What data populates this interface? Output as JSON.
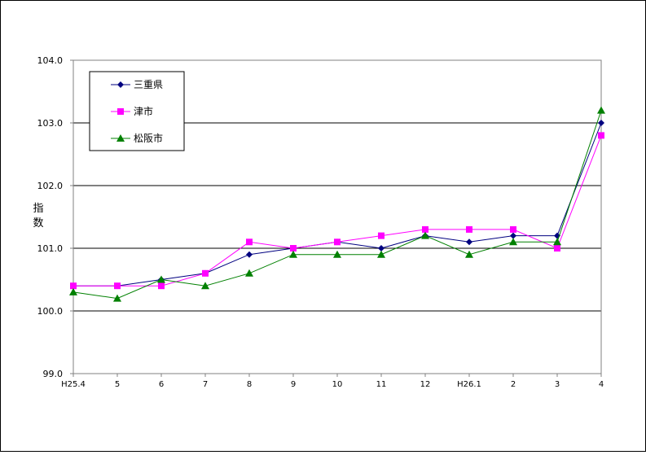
{
  "chart_data": {
    "type": "line",
    "title": "",
    "xlabel": "",
    "ylabel": "指数",
    "ylim": [
      99.0,
      104.0
    ],
    "yticks": [
      "99.0",
      "100.0",
      "101.0",
      "102.0",
      "103.0",
      "104.0"
    ],
    "categories": [
      "H25.4",
      "5",
      "6",
      "7",
      "8",
      "9",
      "10",
      "11",
      "12",
      "H26.1",
      "2",
      "3",
      "4"
    ],
    "grid": true,
    "legend_position": "top-left",
    "series": [
      {
        "name": "三重県",
        "color": "#000080",
        "marker": "diamond",
        "values": [
          100.4,
          100.4,
          100.5,
          100.6,
          100.9,
          101.0,
          101.1,
          101.0,
          101.2,
          101.1,
          101.2,
          101.2,
          103.0
        ]
      },
      {
        "name": "津市",
        "color": "#FF00FF",
        "marker": "square",
        "values": [
          100.4,
          100.4,
          100.4,
          100.6,
          101.1,
          101.0,
          101.1,
          101.2,
          101.3,
          101.3,
          101.3,
          101.0,
          102.8
        ]
      },
      {
        "name": "松阪市",
        "color": "#008000",
        "marker": "triangle",
        "values": [
          100.3,
          100.2,
          100.5,
          100.4,
          100.6,
          100.9,
          100.9,
          100.9,
          101.2,
          100.9,
          101.1,
          101.1,
          103.2
        ]
      }
    ]
  }
}
